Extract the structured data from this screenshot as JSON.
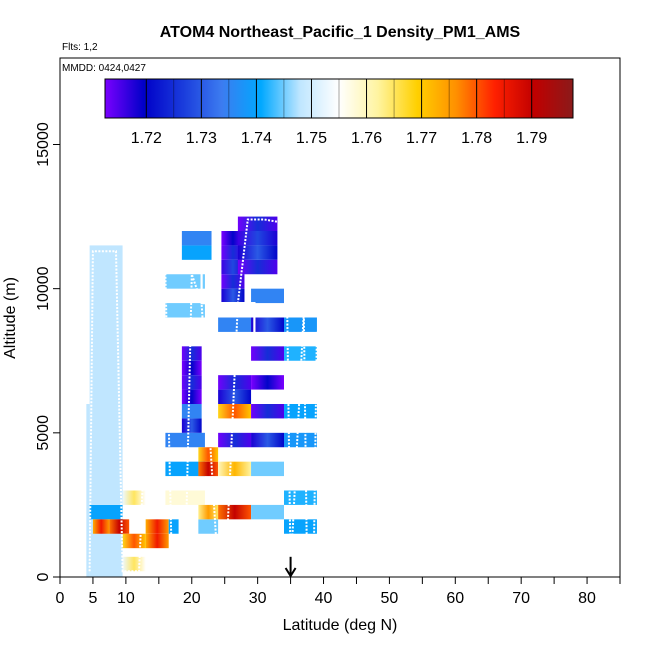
{
  "chart_data": {
    "type": "heatmap",
    "title": "ATOM4 Northeast_Pacific_1 Density_PM1_AMS",
    "flights_label": "Flts: 1,2",
    "dates_label": "MMDD: 0424,0427",
    "xlabel": "Latitude (deg N)",
    "ylabel": "Altitude (m)",
    "xlim": [
      0,
      85
    ],
    "ylim": [
      0,
      18000
    ],
    "x_ticks": [
      0,
      5,
      10,
      20,
      30,
      40,
      50,
      60,
      70,
      80
    ],
    "x_minor_ticks": [
      15,
      25,
      35,
      45,
      55,
      65,
      75,
      85
    ],
    "y_ticks": [
      0,
      5000,
      10000,
      15000
    ],
    "colorbar": {
      "ticks": [
        "1.72",
        "1.73",
        "1.74",
        "1.75",
        "1.76",
        "1.77",
        "1.78",
        "1.79"
      ],
      "tick_values": [
        1.72,
        1.73,
        1.74,
        1.75,
        1.76,
        1.77,
        1.78,
        1.79
      ],
      "range": [
        1.7125,
        1.7975
      ],
      "colors": [
        "#7a00ff",
        "#0000c8",
        "#1a3cdc",
        "#3c7cf0",
        "#00a8ff",
        "#bfe6ff",
        "#ffffff",
        "#fff4a0",
        "#ffd000",
        "#ff9000",
        "#ff2000",
        "#c00000",
        "#8b1a1a"
      ]
    },
    "background_value": 1.748,
    "cell_columns": [
      {
        "x": [
          4.0,
          4.5
        ],
        "z": [
          [
            0,
            6000,
            1.748
          ]
        ]
      },
      {
        "x": [
          4.5,
          9.5
        ],
        "z": [
          [
            0,
            2000,
            1.748
          ],
          [
            2000,
            2500,
            1.74
          ],
          [
            2500,
            11500,
            1.748
          ]
        ]
      },
      {
        "x": [
          5.0,
          7.5
        ],
        "z": [
          [
            1500,
            2000,
            1.785
          ]
        ]
      },
      {
        "x": [
          7.5,
          10.5
        ],
        "z": [
          [
            1500,
            2000,
            1.79
          ]
        ]
      },
      {
        "x": [
          9.5,
          13.0
        ],
        "z": [
          [
            200,
            700,
            1.765
          ],
          [
            1000,
            1500,
            1.78
          ],
          [
            2500,
            3000,
            1.765
          ]
        ]
      },
      {
        "x": [
          13.0,
          16.5
        ],
        "z": [
          [
            1000,
            1500,
            1.785
          ],
          [
            1500,
            2000,
            1.785
          ]
        ]
      },
      {
        "x": [
          16.5,
          18.0
        ],
        "z": [
          [
            1500,
            2000,
            1.74
          ]
        ]
      },
      {
        "x": [
          16.0,
          22.0
        ],
        "z": [
          [
            2500,
            3000,
            1.758
          ],
          [
            3500,
            4000,
            1.74
          ],
          [
            4500,
            5000,
            1.735
          ],
          [
            9000,
            9500,
            1.745
          ],
          [
            10000,
            10500,
            1.745
          ]
        ]
      },
      {
        "x": [
          18.5,
          21.5
        ],
        "z": [
          [
            5000,
            5500,
            1.73
          ],
          [
            5500,
            6000,
            1.735
          ],
          [
            6000,
            6500,
            1.72
          ],
          [
            6500,
            7000,
            1.725
          ],
          [
            7000,
            7500,
            1.72
          ],
          [
            7500,
            8000,
            1.725
          ]
        ]
      },
      {
        "x": [
          18.5,
          23.0
        ],
        "z": [
          [
            11000,
            11500,
            1.74
          ],
          [
            11500,
            12000,
            1.735
          ]
        ]
      },
      {
        "x": [
          21.0,
          24.0
        ],
        "z": [
          [
            1500,
            2000,
            1.745
          ],
          [
            2000,
            2500,
            1.775
          ],
          [
            3500,
            4000,
            1.79
          ],
          [
            4000,
            4500,
            1.78
          ]
        ]
      },
      {
        "x": [
          24.0,
          29.0
        ],
        "z": [
          [
            2000,
            2500,
            1.79
          ],
          [
            3500,
            4000,
            1.772
          ],
          [
            4500,
            5000,
            1.725
          ],
          [
            5500,
            6000,
            1.78
          ],
          [
            6000,
            6500,
            1.73
          ],
          [
            6500,
            7000,
            1.725
          ],
          [
            8500,
            9000,
            1.735
          ]
        ]
      },
      {
        "x": [
          24.5,
          28.0
        ],
        "z": [
          [
            9500,
            10000,
            1.73
          ],
          [
            10000,
            10500,
            1.725
          ],
          [
            10500,
            11000,
            1.728
          ],
          [
            11000,
            11500,
            1.725
          ],
          [
            11500,
            12000,
            1.72
          ]
        ]
      },
      {
        "x": [
          27.0,
          33.0
        ],
        "z": [
          [
            12000,
            12500,
            1.725
          ],
          [
            11500,
            12000,
            1.728
          ],
          [
            11000,
            11500,
            1.73
          ],
          [
            10500,
            11000,
            1.725
          ]
        ]
      },
      {
        "x": [
          29.0,
          34.0
        ],
        "z": [
          [
            2000,
            2500,
            1.745
          ],
          [
            3500,
            4000,
            1.745
          ],
          [
            4500,
            5000,
            1.73
          ],
          [
            5500,
            6000,
            1.725
          ],
          [
            6500,
            7000,
            1.72
          ],
          [
            7500,
            8000,
            1.725
          ],
          [
            8500,
            9000,
            1.73
          ],
          [
            9500,
            10000,
            1.735
          ]
        ]
      },
      {
        "x": [
          34.0,
          39.0
        ],
        "z": [
          [
            1500,
            2000,
            1.74
          ],
          [
            2500,
            3000,
            1.742
          ],
          [
            4500,
            5000,
            1.738
          ],
          [
            5500,
            6000,
            1.74
          ],
          [
            7500,
            8000,
            1.742
          ],
          [
            8500,
            9000,
            1.738
          ]
        ]
      }
    ],
    "arrow_latitude": 35
  }
}
